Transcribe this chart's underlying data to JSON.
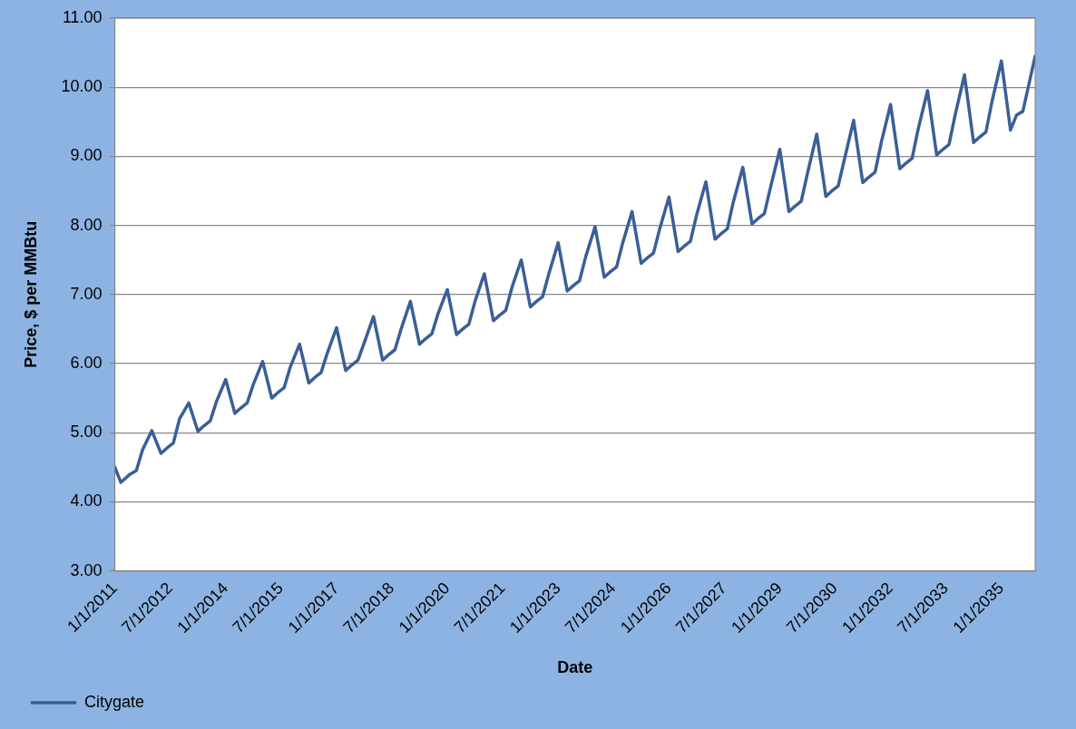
{
  "chart_data": {
    "type": "line",
    "xlabel": "Date",
    "ylabel": "Price, $ per MMBtu",
    "legend": "bottom",
    "grid": "y",
    "marker": "none",
    "line_style": "solid",
    "xlim": [
      "2011-01-01",
      "2035-12-01"
    ],
    "xticks": [
      {
        "value": "2011-01-01",
        "label": "1/1/2011"
      },
      {
        "value": "2012-07-01",
        "label": "7/1/2012"
      },
      {
        "value": "2014-01-01",
        "label": "1/1/2014"
      },
      {
        "value": "2015-07-01",
        "label": "7/1/2015"
      },
      {
        "value": "2017-01-01",
        "label": "1/1/2017"
      },
      {
        "value": "2018-07-01",
        "label": "7/1/2018"
      },
      {
        "value": "2020-01-01",
        "label": "1/1/2020"
      },
      {
        "value": "2021-07-01",
        "label": "7/1/2021"
      },
      {
        "value": "2023-01-01",
        "label": "1/1/2023"
      },
      {
        "value": "2024-07-01",
        "label": "7/1/2024"
      },
      {
        "value": "2026-01-01",
        "label": "1/1/2026"
      },
      {
        "value": "2027-07-01",
        "label": "7/1/2027"
      },
      {
        "value": "2029-01-01",
        "label": "1/1/2029"
      },
      {
        "value": "2030-07-01",
        "label": "7/1/2030"
      },
      {
        "value": "2032-01-01",
        "label": "1/1/2032"
      },
      {
        "value": "2033-07-01",
        "label": "7/1/2033"
      },
      {
        "value": "2035-01-01",
        "label": "1/1/2035"
      }
    ],
    "ylim": [
      3,
      11
    ],
    "yticks": [
      {
        "value": 3,
        "label": "3.00"
      },
      {
        "value": 4,
        "label": "4.00"
      },
      {
        "value": 5,
        "label": "5.00"
      },
      {
        "value": 6,
        "label": "6.00"
      },
      {
        "value": 7,
        "label": "7.00"
      },
      {
        "value": 8,
        "label": "8.00"
      },
      {
        "value": 9,
        "label": "9.00"
      },
      {
        "value": 10,
        "label": "10.00"
      },
      {
        "value": 11,
        "label": "11.00"
      }
    ],
    "x": [
      "2011-01",
      "2011-03",
      "2011-06",
      "2011-08",
      "2011-10",
      "2012-01",
      "2012-04",
      "2012-06",
      "2012-08",
      "2012-10",
      "2013-01",
      "2013-04",
      "2013-06",
      "2013-08",
      "2013-10",
      "2014-01",
      "2014-04",
      "2014-06",
      "2014-08",
      "2014-10",
      "2015-01",
      "2015-04",
      "2015-06",
      "2015-08",
      "2015-10",
      "2016-01",
      "2016-04",
      "2016-06",
      "2016-08",
      "2016-10",
      "2017-01",
      "2017-04",
      "2017-06",
      "2017-08",
      "2017-10",
      "2018-01",
      "2018-04",
      "2018-06",
      "2018-08",
      "2018-10",
      "2019-01",
      "2019-04",
      "2019-06",
      "2019-08",
      "2019-10",
      "2020-01",
      "2020-04",
      "2020-06",
      "2020-08",
      "2020-10",
      "2021-01",
      "2021-04",
      "2021-06",
      "2021-08",
      "2021-10",
      "2022-01",
      "2022-04",
      "2022-06",
      "2022-08",
      "2022-10",
      "2023-01",
      "2023-04",
      "2023-06",
      "2023-08",
      "2023-10",
      "2024-01",
      "2024-04",
      "2024-06",
      "2024-08",
      "2024-10",
      "2025-01",
      "2025-04",
      "2025-06",
      "2025-08",
      "2025-10",
      "2026-01",
      "2026-04",
      "2026-06",
      "2026-08",
      "2026-10",
      "2027-01",
      "2027-04",
      "2027-06",
      "2027-08",
      "2027-10",
      "2028-01",
      "2028-04",
      "2028-06",
      "2028-08",
      "2028-10",
      "2029-01",
      "2029-04",
      "2029-06",
      "2029-08",
      "2029-10",
      "2030-01",
      "2030-04",
      "2030-06",
      "2030-08",
      "2030-10",
      "2031-01",
      "2031-04",
      "2031-06",
      "2031-08",
      "2031-10",
      "2032-01",
      "2032-04",
      "2032-06",
      "2032-08",
      "2032-10",
      "2033-01",
      "2033-04",
      "2033-06",
      "2033-08",
      "2033-10",
      "2034-01",
      "2034-04",
      "2034-06",
      "2034-08",
      "2034-10",
      "2035-01",
      "2035-04",
      "2035-06",
      "2035-08",
      "2035-10",
      "2035-12"
    ],
    "series": [
      {
        "name": "Citygate",
        "color": "#3a5f96",
        "values": [
          4.5,
          4.28,
          4.4,
          4.45,
          4.75,
          5.03,
          4.7,
          4.78,
          4.85,
          5.2,
          5.43,
          5.02,
          5.1,
          5.17,
          5.45,
          5.77,
          5.28,
          5.36,
          5.43,
          5.7,
          6.03,
          5.5,
          5.58,
          5.65,
          5.95,
          6.28,
          5.72,
          5.8,
          5.87,
          6.15,
          6.52,
          5.9,
          5.98,
          6.05,
          6.3,
          6.68,
          6.05,
          6.13,
          6.2,
          6.5,
          6.9,
          6.28,
          6.36,
          6.43,
          6.72,
          7.07,
          6.42,
          6.5,
          6.57,
          6.9,
          7.3,
          6.62,
          6.7,
          6.77,
          7.1,
          7.5,
          6.82,
          6.9,
          6.97,
          7.3,
          7.75,
          7.05,
          7.13,
          7.2,
          7.55,
          7.98,
          7.25,
          7.33,
          7.4,
          7.75,
          8.2,
          7.45,
          7.53,
          7.6,
          7.95,
          8.41,
          7.62,
          7.7,
          7.77,
          8.15,
          8.63,
          7.8,
          7.88,
          7.95,
          8.35,
          8.84,
          8.02,
          8.1,
          8.17,
          8.55,
          9.1,
          8.2,
          8.28,
          8.35,
          8.75,
          9.32,
          8.42,
          8.5,
          8.57,
          8.95,
          9.52,
          8.62,
          8.7,
          8.77,
          9.2,
          9.75,
          8.82,
          8.9,
          8.97,
          9.4,
          9.95,
          9.02,
          9.1,
          9.17,
          9.6,
          10.18,
          9.2,
          9.28,
          9.35,
          9.8,
          10.38,
          9.38,
          9.6,
          9.65,
          10.05,
          10.45
        ]
      }
    ]
  }
}
